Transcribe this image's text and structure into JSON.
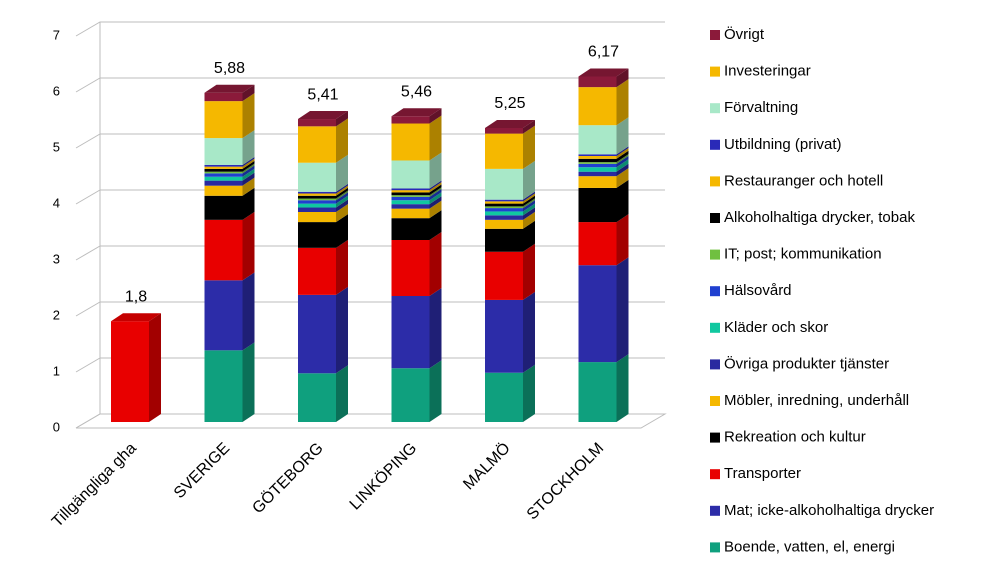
{
  "chart_data": {
    "type": "bar3d-stacked",
    "categories": [
      "Tillgängliga gha",
      "SVERIGE",
      "GÖTEBORG",
      "LINKÖPING",
      "MALMÖ",
      "STOCKHOLM"
    ],
    "totals": [
      1.8,
      5.88,
      5.41,
      5.46,
      5.25,
      6.17
    ],
    "total_labels": [
      "1,8",
      "5,88",
      "5,41",
      "5,46",
      "5,25",
      "6,17"
    ],
    "ylim": [
      0,
      7
    ],
    "yticks": [
      0,
      1,
      2,
      3,
      4,
      5,
      6,
      7
    ],
    "grid": true,
    "series": [
      {
        "name": "Boende, vatten, el, energi",
        "color": "#0fa07e",
        "values": [
          null,
          1.28,
          0.87,
          0.96,
          0.88,
          1.07
        ]
      },
      {
        "name": "Mat; icke-alkoholhaltiga drycker",
        "color": "#2c2ca8",
        "values": [
          null,
          1.25,
          1.4,
          1.29,
          1.3,
          1.73
        ]
      },
      {
        "name": "Transporter",
        "color": "#e80000",
        "values": [
          1.8,
          1.08,
          0.84,
          1.0,
          0.86,
          0.77
        ]
      },
      {
        "name": "Rekreation och kultur",
        "color": "#000000",
        "values": [
          null,
          0.43,
          0.46,
          0.39,
          0.41,
          0.61
        ]
      },
      {
        "name": "Möbler, inredning, underhåll",
        "color": "#f5b800",
        "values": [
          null,
          0.18,
          0.18,
          0.17,
          0.16,
          0.21
        ]
      },
      {
        "name": "Övriga produkter tjänster",
        "color": "#2a2aa0",
        "values": [
          null,
          0.09,
          0.08,
          0.08,
          0.08,
          0.08
        ]
      },
      {
        "name": "Kläder och skor",
        "color": "#10c8a0",
        "values": [
          null,
          0.07,
          0.07,
          0.07,
          0.07,
          0.08
        ]
      },
      {
        "name": "Hälsovård",
        "color": "#2040d0",
        "values": [
          null,
          0.06,
          0.06,
          0.06,
          0.06,
          0.06
        ]
      },
      {
        "name": "IT; post; kommunikation",
        "color": "#70c040",
        "values": [
          null,
          0.03,
          0.03,
          0.03,
          0.03,
          0.03
        ]
      },
      {
        "name": "Alkoholhaltiga drycker, tobak",
        "color": "#000000",
        "values": [
          null,
          0.05,
          0.05,
          0.05,
          0.05,
          0.06
        ]
      },
      {
        "name": "Restauranger och hotell",
        "color": "#f5b800",
        "values": [
          null,
          0.04,
          0.04,
          0.04,
          0.04,
          0.05
        ]
      },
      {
        "name": "Utbildning (privat)",
        "color": "#2a2ab8",
        "values": [
          null,
          0.03,
          0.03,
          0.03,
          0.03,
          0.03
        ]
      },
      {
        "name": "Förvaltning",
        "color": "#a8e8c8",
        "values": [
          null,
          0.48,
          0.52,
          0.5,
          0.55,
          0.52
        ]
      },
      {
        "name": "Investeringar",
        "color": "#f5b800",
        "values": [
          null,
          0.66,
          0.65,
          0.66,
          0.63,
          0.68
        ]
      },
      {
        "name": "Övrigt",
        "color": "#8b1a3a",
        "values": [
          null,
          0.15,
          0.13,
          0.13,
          0.1,
          0.19
        ]
      }
    ]
  }
}
